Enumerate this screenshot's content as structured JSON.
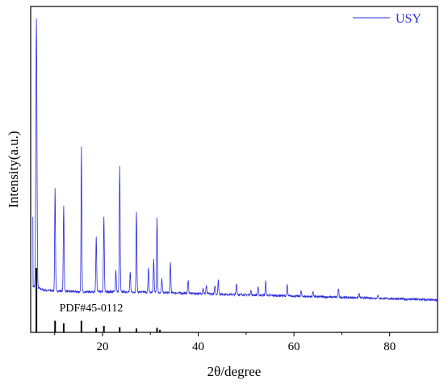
{
  "chart_data": {
    "type": "line",
    "title": "",
    "xlabel": "2θ/degree",
    "ylabel": "Intensity(a.u.)",
    "xlim": [
      5,
      90
    ],
    "xticks": [
      20,
      40,
      60,
      80
    ],
    "xtick_labels": [
      "20",
      "40",
      "60",
      "80"
    ],
    "y_ticks_shown": false,
    "grid": false,
    "legend": {
      "position": "top-right",
      "entries": [
        {
          "label": "USY",
          "color": "#2b2bdc"
        }
      ]
    },
    "series": [
      {
        "name": "USY",
        "color": "#2b2bdc",
        "baseline": [
          [
            5.5,
            0.05
          ],
          [
            8,
            0.035
          ],
          [
            15,
            0.03
          ],
          [
            25,
            0.03
          ],
          [
            35,
            0.026
          ],
          [
            45,
            0.021
          ],
          [
            55,
            0.017
          ],
          [
            65,
            0.012
          ],
          [
            75,
            0.008
          ],
          [
            90,
            0.0
          ]
        ],
        "peaks": [
          [
            6.2,
            0.97
          ],
          [
            10.1,
            0.37
          ],
          [
            11.9,
            0.31
          ],
          [
            15.6,
            0.52
          ],
          [
            18.7,
            0.2
          ],
          [
            20.3,
            0.27
          ],
          [
            22.8,
            0.08
          ],
          [
            23.6,
            0.45
          ],
          [
            25.8,
            0.07
          ],
          [
            27.1,
            0.29
          ],
          [
            29.6,
            0.09
          ],
          [
            30.7,
            0.12
          ],
          [
            31.4,
            0.27
          ],
          [
            32.4,
            0.05
          ],
          [
            34.2,
            0.11
          ],
          [
            37.9,
            0.05
          ],
          [
            41.0,
            0.02
          ],
          [
            41.7,
            0.03
          ],
          [
            43.5,
            0.03
          ],
          [
            44.2,
            0.05
          ],
          [
            48.0,
            0.04
          ],
          [
            51.0,
            0.02
          ],
          [
            52.5,
            0.03
          ],
          [
            54.1,
            0.05
          ],
          [
            58.6,
            0.04
          ],
          [
            61.5,
            0.02
          ],
          [
            64.0,
            0.02
          ],
          [
            69.3,
            0.03
          ],
          [
            73.6,
            0.015
          ],
          [
            77.5,
            0.012
          ]
        ]
      }
    ],
    "reference": {
      "label": "PDF#45-0112",
      "sticks": [
        [
          6.2,
          1.0
        ],
        [
          10.1,
          0.18
        ],
        [
          11.9,
          0.14
        ],
        [
          15.6,
          0.18
        ],
        [
          18.7,
          0.07
        ],
        [
          20.3,
          0.1
        ],
        [
          23.6,
          0.08
        ],
        [
          27.1,
          0.06
        ],
        [
          31.4,
          0.07
        ],
        [
          32.0,
          0.04
        ]
      ]
    }
  }
}
